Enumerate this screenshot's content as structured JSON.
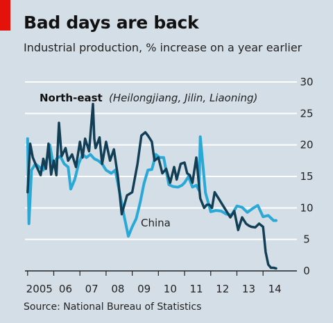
{
  "header": {
    "title": "Bad days are back",
    "subtitle": "Industrial production, % increase on a year earlier"
  },
  "footer": {
    "source": "Source: National Bureau of Statistics"
  },
  "colors": {
    "background": "#d4dee6",
    "northeast": "#123f55",
    "china": "#2aa8d6",
    "accent": "#e3120b"
  },
  "chart_data": {
    "type": "line",
    "xlabel": "",
    "ylabel": "",
    "ylim": [
      0,
      30
    ],
    "yticks": [
      0,
      5,
      10,
      15,
      20,
      25,
      30
    ],
    "xlim": [
      2004.9,
      2014.95
    ],
    "xtick_labels": [
      {
        "label": "2005",
        "x": 2005
      },
      {
        "label": "06",
        "x": 2006
      },
      {
        "label": "07",
        "x": 2007
      },
      {
        "label": "08",
        "x": 2008
      },
      {
        "label": "09",
        "x": 2009
      },
      {
        "label": "10",
        "x": 2010
      },
      {
        "label": "11",
        "x": 2011
      },
      {
        "label": "12",
        "x": 2012
      },
      {
        "label": "13",
        "x": 2013
      },
      {
        "label": "14",
        "x": 2014
      }
    ],
    "grid": true,
    "y_axis_side": "right",
    "annotations": {
      "northeast_bold": "North-east",
      "northeast_italic": "(Heilongjiang, Jilin, Liaoning)",
      "china": "China"
    },
    "series": [
      {
        "key": "northeast",
        "name": "North-east",
        "x": [
          2005.0,
          2005.1,
          2005.2,
          2005.35,
          2005.5,
          2005.6,
          2005.7,
          2005.8,
          2005.9,
          2006.0,
          2006.1,
          2006.2,
          2006.3,
          2006.45,
          2006.55,
          2006.7,
          2006.85,
          2007.0,
          2007.1,
          2007.2,
          2007.35,
          2007.5,
          2007.55,
          2007.6,
          2007.75,
          2007.85,
          2008.0,
          2008.15,
          2008.3,
          2008.45,
          2008.6,
          2008.8,
          2009.0,
          2009.2,
          2009.35,
          2009.5,
          2009.6,
          2009.75,
          2009.85,
          2010.0,
          2010.15,
          2010.3,
          2010.45,
          2010.6,
          2010.7,
          2010.85,
          2011.0,
          2011.1,
          2011.2,
          2011.3,
          2011.45,
          2011.6,
          2011.75,
          2011.85,
          2011.95,
          2012.05,
          2012.15,
          2012.3,
          2012.45,
          2012.6,
          2012.75,
          2012.9,
          2013.05,
          2013.2,
          2013.35,
          2013.45,
          2013.55,
          2013.7,
          2013.85,
          2014.0,
          2014.1,
          2014.2,
          2014.3,
          2014.4,
          2014.5
        ],
        "values": [
          12.5,
          20.2,
          18,
          16.5,
          15.2,
          17.8,
          16.2,
          20.2,
          15.3,
          17.5,
          15.2,
          23.5,
          18.2,
          19.5,
          17.5,
          18.5,
          16.5,
          20.5,
          18.0,
          21.0,
          19.0,
          26.5,
          21.0,
          19.5,
          21.2,
          17.0,
          20.5,
          17.5,
          19.3,
          15.0,
          9.0,
          12.0,
          12.5,
          17.0,
          21.5,
          22.0,
          21.5,
          20.5,
          17.5,
          18.0,
          15.5,
          16.2,
          14.0,
          16.5,
          14.5,
          17.0,
          17.2,
          15.5,
          15.2,
          14.0,
          18.0,
          11.5,
          10.0,
          10.5,
          10.5,
          10.0,
          12.5,
          11.5,
          10.5,
          9.5,
          8.5,
          9.5,
          6.5,
          8.5,
          7.5,
          7.2,
          7.0,
          6.9,
          7.5,
          7.0,
          3.0,
          1.0,
          0.5,
          0.5,
          0.4
        ]
      },
      {
        "key": "china",
        "name": "China",
        "x": [
          2005.0,
          2005.05,
          2005.15,
          2005.3,
          2005.45,
          2005.6,
          2005.75,
          2005.85,
          2006.0,
          2006.1,
          2006.25,
          2006.4,
          2006.55,
          2006.65,
          2006.8,
          2006.95,
          2007.1,
          2007.25,
          2007.4,
          2007.55,
          2007.7,
          2007.85,
          2008.0,
          2008.2,
          2008.35,
          2008.5,
          2008.7,
          2008.85,
          2009.0,
          2009.15,
          2009.3,
          2009.45,
          2009.6,
          2009.75,
          2009.9,
          2010.05,
          2010.2,
          2010.4,
          2010.55,
          2010.75,
          2010.9,
          2011.0,
          2011.15,
          2011.3,
          2011.45,
          2011.55,
          2011.6,
          2011.8,
          2012.0,
          2012.2,
          2012.4,
          2012.6,
          2012.8,
          2013.0,
          2013.2,
          2013.4,
          2013.6,
          2013.8,
          2014.0,
          2014.2,
          2014.4,
          2014.5
        ],
        "values": [
          21.0,
          7.5,
          16.0,
          17.0,
          16.5,
          16.0,
          18.0,
          20.0,
          16.5,
          17.8,
          18.2,
          17.0,
          16.5,
          13.0,
          14.5,
          17.0,
          18.5,
          18.0,
          18.5,
          17.8,
          17.5,
          17.0,
          16.0,
          15.5,
          16.0,
          12.8,
          8.5,
          5.5,
          7.0,
          8.3,
          10.8,
          13.9,
          16.0,
          16.1,
          18.5,
          18.0,
          18.0,
          13.7,
          13.4,
          13.3,
          13.6,
          14.0,
          15.0,
          13.3,
          13.6,
          12.8,
          21.3,
          12.4,
          9.4,
          9.6,
          9.5,
          9.0,
          8.9,
          10.3,
          10.1,
          9.3,
          9.9,
          10.4,
          8.6,
          8.8,
          8.0,
          8.0
        ]
      }
    ]
  }
}
